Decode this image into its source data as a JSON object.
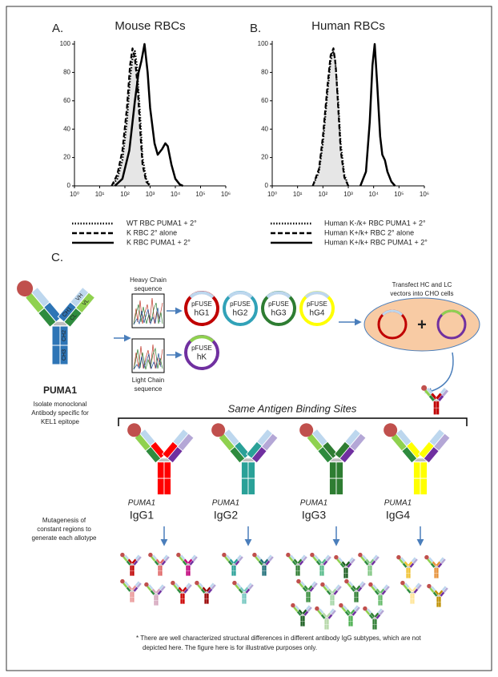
{
  "chart_data": [
    {
      "type": "line",
      "label": "A.",
      "title": "Mouse RBCs",
      "xscale": "log",
      "xlim": [
        1,
        1000000
      ],
      "ylim": [
        0,
        100
      ],
      "xticks": [
        {
          "value": 1,
          "label": "10⁰"
        },
        {
          "value": 10,
          "label": "10¹"
        },
        {
          "value": 100,
          "label": "10²"
        },
        {
          "value": 1000,
          "label": "10³"
        },
        {
          "value": 10000,
          "label": "10⁴"
        },
        {
          "value": 100000,
          "label": "10⁵"
        },
        {
          "value": 1000000,
          "label": "10⁶"
        }
      ],
      "yticks": [
        0,
        20,
        40,
        60,
        80,
        100
      ],
      "series": [
        {
          "name": "WT RBC PUMA1 + 2°",
          "color": "#000000",
          "dash": "dotted",
          "x": [
            30,
            50,
            80,
            120,
            160,
            200,
            250,
            300,
            400,
            500,
            700,
            1000
          ],
          "values": [
            0,
            5,
            18,
            45,
            75,
            90,
            95,
            85,
            50,
            20,
            5,
            0
          ]
        },
        {
          "name": "K RBC 2° alone",
          "color": "#000000",
          "dash": "dashed",
          "fill": "#e6e6e6",
          "x": [
            30,
            50,
            80,
            120,
            160,
            200,
            250,
            320,
            400,
            500,
            700,
            1000
          ],
          "values": [
            0,
            8,
            25,
            55,
            85,
            97,
            90,
            70,
            40,
            15,
            3,
            0
          ]
        },
        {
          "name": "K RBC PUMA1 + 2°",
          "color": "#000000",
          "dash": "solid",
          "x": [
            40,
            80,
            150,
            250,
            350,
            450,
            600,
            800,
            1000,
            1500,
            2000,
            3000,
            4000,
            5000,
            7000,
            10000,
            15000,
            20000
          ],
          "values": [
            0,
            5,
            25,
            60,
            80,
            88,
            100,
            80,
            55,
            30,
            22,
            26,
            30,
            28,
            15,
            5,
            1,
            0
          ]
        }
      ]
    },
    {
      "type": "line",
      "label": "B.",
      "title": "Human RBCs",
      "xscale": "log",
      "xlim": [
        1,
        1000000
      ],
      "ylim": [
        0,
        100
      ],
      "xticks": [
        {
          "value": 1,
          "label": "10⁰"
        },
        {
          "value": 10,
          "label": "10¹"
        },
        {
          "value": 100,
          "label": "10²"
        },
        {
          "value": 1000,
          "label": "10³"
        },
        {
          "value": 10000,
          "label": "10⁴"
        },
        {
          "value": 100000,
          "label": "10⁵"
        },
        {
          "value": 1000000,
          "label": "10⁶"
        }
      ],
      "yticks": [
        0,
        20,
        40,
        60,
        80,
        100
      ],
      "series": [
        {
          "name": "Human K-/k+ RBC PUMA1 + 2°",
          "color": "#000000",
          "dash": "dotted",
          "x": [
            40,
            70,
            100,
            150,
            200,
            250,
            300,
            400,
            500,
            700,
            1000
          ],
          "values": [
            0,
            10,
            30,
            65,
            88,
            95,
            90,
            60,
            30,
            8,
            0
          ]
        },
        {
          "name": "Human K+/k+ RBC 2° alone",
          "color": "#000000",
          "dash": "dashed",
          "fill": "#e6e6e6",
          "x": [
            40,
            70,
            100,
            150,
            200,
            260,
            320,
            400,
            500,
            700,
            1000
          ],
          "values": [
            0,
            12,
            35,
            70,
            92,
            97,
            85,
            55,
            25,
            6,
            0
          ]
        },
        {
          "name": "Human K+/k+ RBC PUMA1 + 2°",
          "color": "#000000",
          "dash": "solid",
          "x": [
            3000,
            5000,
            7000,
            9000,
            11000,
            14000,
            18000,
            22000,
            28000,
            35000,
            50000,
            70000
          ],
          "values": [
            0,
            10,
            45,
            85,
            100,
            70,
            35,
            22,
            18,
            10,
            3,
            0
          ]
        }
      ]
    }
  ],
  "diagram": {
    "panel_label": "C.",
    "heavy_chain": [
      "Heavy Chain",
      "sequence"
    ],
    "light_chain": [
      "Light Chain",
      "sequence"
    ],
    "plasmids": [
      {
        "name": "pFUSE",
        "label": "hG1"
      },
      {
        "name": "pFUSE",
        "label": "hG2"
      },
      {
        "name": "pFUSE",
        "label": "hG3"
      },
      {
        "name": "pFUSE",
        "label": "hG4"
      },
      {
        "name": "pFUSE",
        "label": "hK"
      }
    ],
    "transfect": [
      "Transfect HC and LC",
      "vectors into CHO cells"
    ],
    "plus": "+",
    "antibody_name": "PUMA1",
    "domains": [
      "CH1",
      "VH",
      "CL",
      "VL",
      "CH2",
      "CH3"
    ],
    "isolate": [
      "Isolate monoclonal",
      "Antibody specific for",
      "KEL1 epitope"
    ],
    "bracket": "Same Antigen Binding Sites",
    "variants": [
      {
        "name": "PUMA1",
        "subclass": "IgG1"
      },
      {
        "name": "PUMA1",
        "subclass": "IgG2"
      },
      {
        "name": "PUMA1",
        "subclass": "IgG3"
      },
      {
        "name": "PUMA1",
        "subclass": "IgG4"
      }
    ],
    "mutagenesis": [
      "Mutagenesis of",
      "constant regions to",
      "generate each allotype"
    ],
    "footnote": [
      "* There are well characterized structural differences in different antibody IgG subtypes, which are not",
      "depicted here. The figure here is for illustrative purposes only."
    ]
  }
}
